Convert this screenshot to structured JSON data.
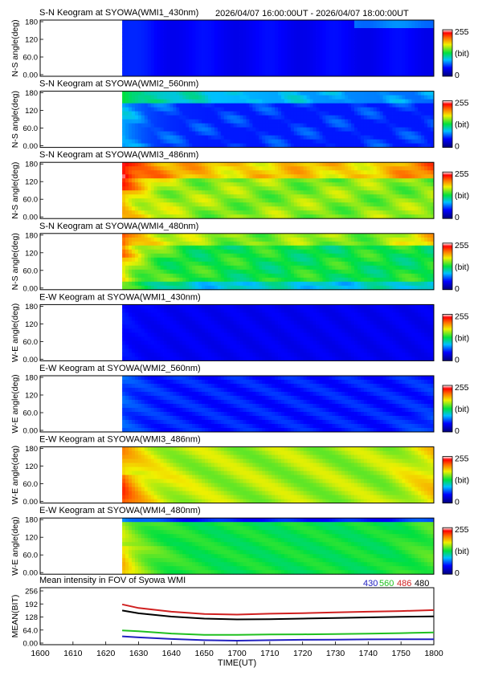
{
  "header": {
    "time_range": "2026/04/07 16:00:00UT - 2026/04/07 18:00:00UT"
  },
  "keogram_panels": [
    {
      "title": "S-N Keogram at SYOWA(WMI1_430nm)",
      "ylabel": "N-S angle(deg)",
      "profile": "sn430"
    },
    {
      "title": "S-N Keogram at SYOWA(WMI2_560nm)",
      "ylabel": "N-S angle(deg)",
      "profile": "sn560"
    },
    {
      "title": "S-N Keogram at SYOWA(WMI3_486nm)",
      "ylabel": "N-S angle(deg)",
      "profile": "sn486"
    },
    {
      "title": "S-N Keogram at SYOWA(WMI4_480nm)",
      "ylabel": "N-S angle(deg)",
      "profile": "sn480"
    },
    {
      "title": "E-W Keogram at SYOWA(WMI1_430nm)",
      "ylabel": "W-E angle(deg)",
      "profile": "ew430"
    },
    {
      "title": "E-W Keogram at SYOWA(WMI2_560nm)",
      "ylabel": "W-E angle(deg)",
      "profile": "ew560"
    },
    {
      "title": "E-W Keogram at SYOWA(WMI3_486nm)",
      "ylabel": "W-E angle(deg)",
      "profile": "ew486"
    },
    {
      "title": "E-W Keogram at SYOWA(WMI4_480nm)",
      "ylabel": "W-E angle(deg)",
      "profile": "ew480"
    }
  ],
  "keogram_yticks": [
    "0.00",
    "60.0",
    "120",
    "180"
  ],
  "colorbar": {
    "max_label": "255",
    "unit_label": "(bit)",
    "min_label": "0"
  },
  "data_start_time": "1625",
  "x_axis": {
    "label": "TIME(UT)",
    "ticks": [
      "1600",
      "1610",
      "1620",
      "1630",
      "1640",
      "1650",
      "1700",
      "1710",
      "1720",
      "1730",
      "1740",
      "1750",
      "1800"
    ]
  },
  "mean_panel": {
    "title": "Mean intensity in FOV of Syowa WMI",
    "ylabel": "MEAN(BIT)",
    "yticks": [
      "0.00",
      "64.0",
      "128",
      "192",
      "256"
    ]
  },
  "chart_data": {
    "type": "line",
    "title": "Mean intensity in FOV of Syowa WMI",
    "xlabel": "TIME(UT)",
    "ylabel": "MEAN(BIT)",
    "xlim": [
      "16:00",
      "18:00"
    ],
    "ylim": [
      0,
      256
    ],
    "x": [
      "16:25",
      "16:30",
      "16:40",
      "16:50",
      "17:00",
      "17:10",
      "17:20",
      "17:30",
      "17:40",
      "17:50",
      "18:00"
    ],
    "series": [
      {
        "name": "430",
        "color": "#2020c0",
        "values": [
          33,
          28,
          20,
          14,
          12,
          14,
          16,
          17,
          18,
          19,
          19
        ]
      },
      {
        "name": "560",
        "color": "#20c020",
        "values": [
          62,
          58,
          47,
          40,
          40,
          42,
          43,
          44,
          46,
          49,
          52
        ]
      },
      {
        "name": "486",
        "color": "#d02020",
        "values": [
          190,
          172,
          154,
          143,
          140,
          144,
          147,
          151,
          154,
          157,
          162
        ]
      },
      {
        "name": "480",
        "color": "#000000",
        "values": [
          160,
          146,
          130,
          120,
          116,
          117,
          120,
          123,
          126,
          129,
          131
        ]
      }
    ]
  }
}
